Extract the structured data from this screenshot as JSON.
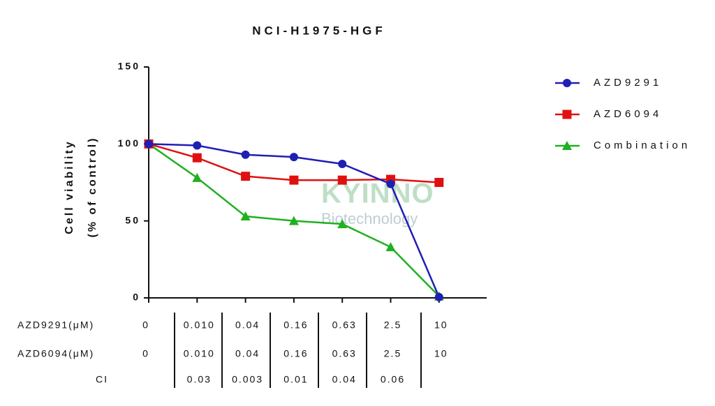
{
  "chart_data": {
    "type": "line",
    "title": "NCI-H1975-HGF",
    "y_label": [
      "Cell viability",
      "(% of control)"
    ],
    "ylim": [
      0,
      150
    ],
    "yticks": [
      0,
      50,
      100,
      150
    ],
    "series": [
      {
        "name": "AZD9291",
        "color": "#1f1fb4",
        "marker": "circle",
        "values": [
          100,
          99,
          93,
          91.5,
          87,
          74,
          0.5
        ]
      },
      {
        "name": "AZD6094",
        "color": "#e01010",
        "marker": "square",
        "values": [
          100,
          91,
          79,
          76.5,
          76.5,
          77,
          75
        ]
      },
      {
        "name": "Combination",
        "color": "#20b020",
        "marker": "triangle",
        "values": [
          100,
          78,
          53,
          50,
          48,
          33,
          1
        ]
      }
    ],
    "table": [
      {
        "label": "AZD9291(μM)",
        "cells": [
          "0",
          "0.010",
          "0.04",
          "0.16",
          "0.63",
          "2.5",
          "10"
        ]
      },
      {
        "label": "AZD6094(μM)",
        "cells": [
          "0",
          "0.010",
          "0.04",
          "0.16",
          "0.63",
          "2.5",
          "10"
        ]
      },
      {
        "label": "CI",
        "cells": [
          null,
          "0.03",
          "0.003",
          "0.01",
          "0.04",
          "0.06",
          null
        ]
      }
    ],
    "watermark": {
      "name": "KYINNO",
      "tagline": "Biotechnology"
    }
  }
}
